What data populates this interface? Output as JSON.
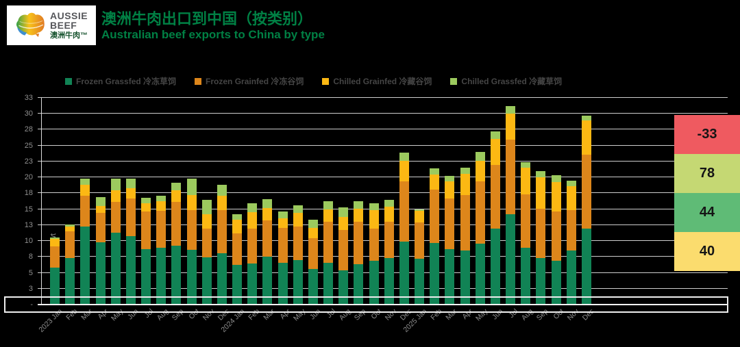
{
  "header": {
    "logo": {
      "line1": "AUSSIE",
      "line2": "BEEF",
      "line3": "澳洲牛肉™"
    },
    "title_zh": "澳洲牛肉出口到中国（按类别）",
    "title_en": "Australian beef exports to China by type"
  },
  "chart_data": {
    "type": "bar",
    "stacked": true,
    "title": "澳洲牛肉出口到中国（按类别）",
    "ylabel": "'000 tonnes swt",
    "ylim": [
      0,
      32.5
    ],
    "ytick_step": 2.5,
    "ytick_labels": [
      "-",
      "3",
      "5",
      "8",
      "10",
      "13",
      "15",
      "18",
      "20",
      "23",
      "25",
      "28",
      "30",
      "33"
    ],
    "grid": true,
    "legend_position": "top",
    "categories": [
      "2023 Jan",
      "Feb",
      "Mar",
      "Apr",
      "May",
      "Jun",
      "Jul",
      "Aug",
      "Sep",
      "Oct",
      "Nov",
      "Dec",
      "2024 Jan",
      "Feb",
      "Mar",
      "Apr",
      "May",
      "Jun",
      "Jul",
      "Aug",
      "Sep",
      "Oct",
      "Nov",
      "Dec",
      "2025 Jan",
      "Feb",
      "Mar",
      "Apr",
      "May",
      "Jun",
      "Jul",
      "Aug",
      "Sep",
      "Oct",
      "Nov",
      "Dec"
    ],
    "series": [
      {
        "name": "Frozen Grassfed 冷冻草饲",
        "color": "#118355",
        "values": [
          5.8,
          7.3,
          12.3,
          9.8,
          11.3,
          10.8,
          8.7,
          8.9,
          9.3,
          8.6,
          7.4,
          8.1,
          6.2,
          6.5,
          7.5,
          6.6,
          7.0,
          5.6,
          6.6,
          5.4,
          6.4,
          6.9,
          7.3,
          9.9,
          7.2,
          9.7,
          8.7,
          8.5,
          9.6,
          11.9,
          14.2,
          8.9,
          7.3,
          6.9,
          8.5,
          11.9
        ]
      },
      {
        "name": "Frozen Grainfed 冷冻谷饲",
        "color": "#DD861B",
        "values": [
          3.3,
          4.2,
          4.8,
          4.6,
          4.8,
          5.9,
          5.9,
          5.8,
          6.8,
          6.3,
          4.5,
          6.8,
          5.0,
          5.4,
          5.7,
          5.5,
          5.3,
          4.8,
          6.4,
          6.3,
          6.6,
          5.1,
          5.7,
          9.5,
          5.7,
          8.4,
          8.0,
          8.7,
          9.8,
          10.1,
          11.7,
          8.4,
          7.8,
          7.7,
          6.3,
          11.7
        ]
      },
      {
        "name": "Chilled Grainfed 冷藏谷饲",
        "color": "#FCB813",
        "values": [
          1.2,
          0.8,
          1.7,
          1.1,
          1.9,
          1.6,
          1.3,
          1.5,
          1.9,
          2.3,
          2.3,
          2.2,
          2.1,
          2.6,
          2.0,
          1.5,
          2.1,
          1.7,
          2.0,
          2.1,
          2.1,
          2.8,
          2.4,
          3.2,
          1.8,
          2.4,
          2.7,
          3.4,
          3.2,
          4.0,
          4.1,
          4.2,
          4.9,
          4.7,
          3.8,
          5.3
        ]
      },
      {
        "name": "Chilled Grassfed 冷藏草饲",
        "color": "#9CCA5E",
        "values": [
          0.3,
          0.3,
          1.0,
          1.4,
          1.8,
          1.5,
          0.9,
          0.9,
          1.2,
          2.6,
          2.3,
          1.7,
          0.9,
          1.4,
          1.4,
          1.0,
          1.2,
          1.3,
          1.2,
          1.5,
          1.1,
          1.1,
          1.1,
          1.3,
          0.3,
          0.9,
          0.8,
          0.9,
          1.4,
          1.2,
          1.2,
          0.9,
          1.0,
          1.0,
          0.9,
          0.8
        ]
      }
    ]
  },
  "side_panel": {
    "boxes": [
      {
        "value": "-33",
        "color": "#EF5A60"
      },
      {
        "value": "78",
        "color": "#C5D873"
      },
      {
        "value": "44",
        "color": "#5FBB76"
      },
      {
        "value": "40",
        "color": "#FBDC6E"
      }
    ]
  }
}
